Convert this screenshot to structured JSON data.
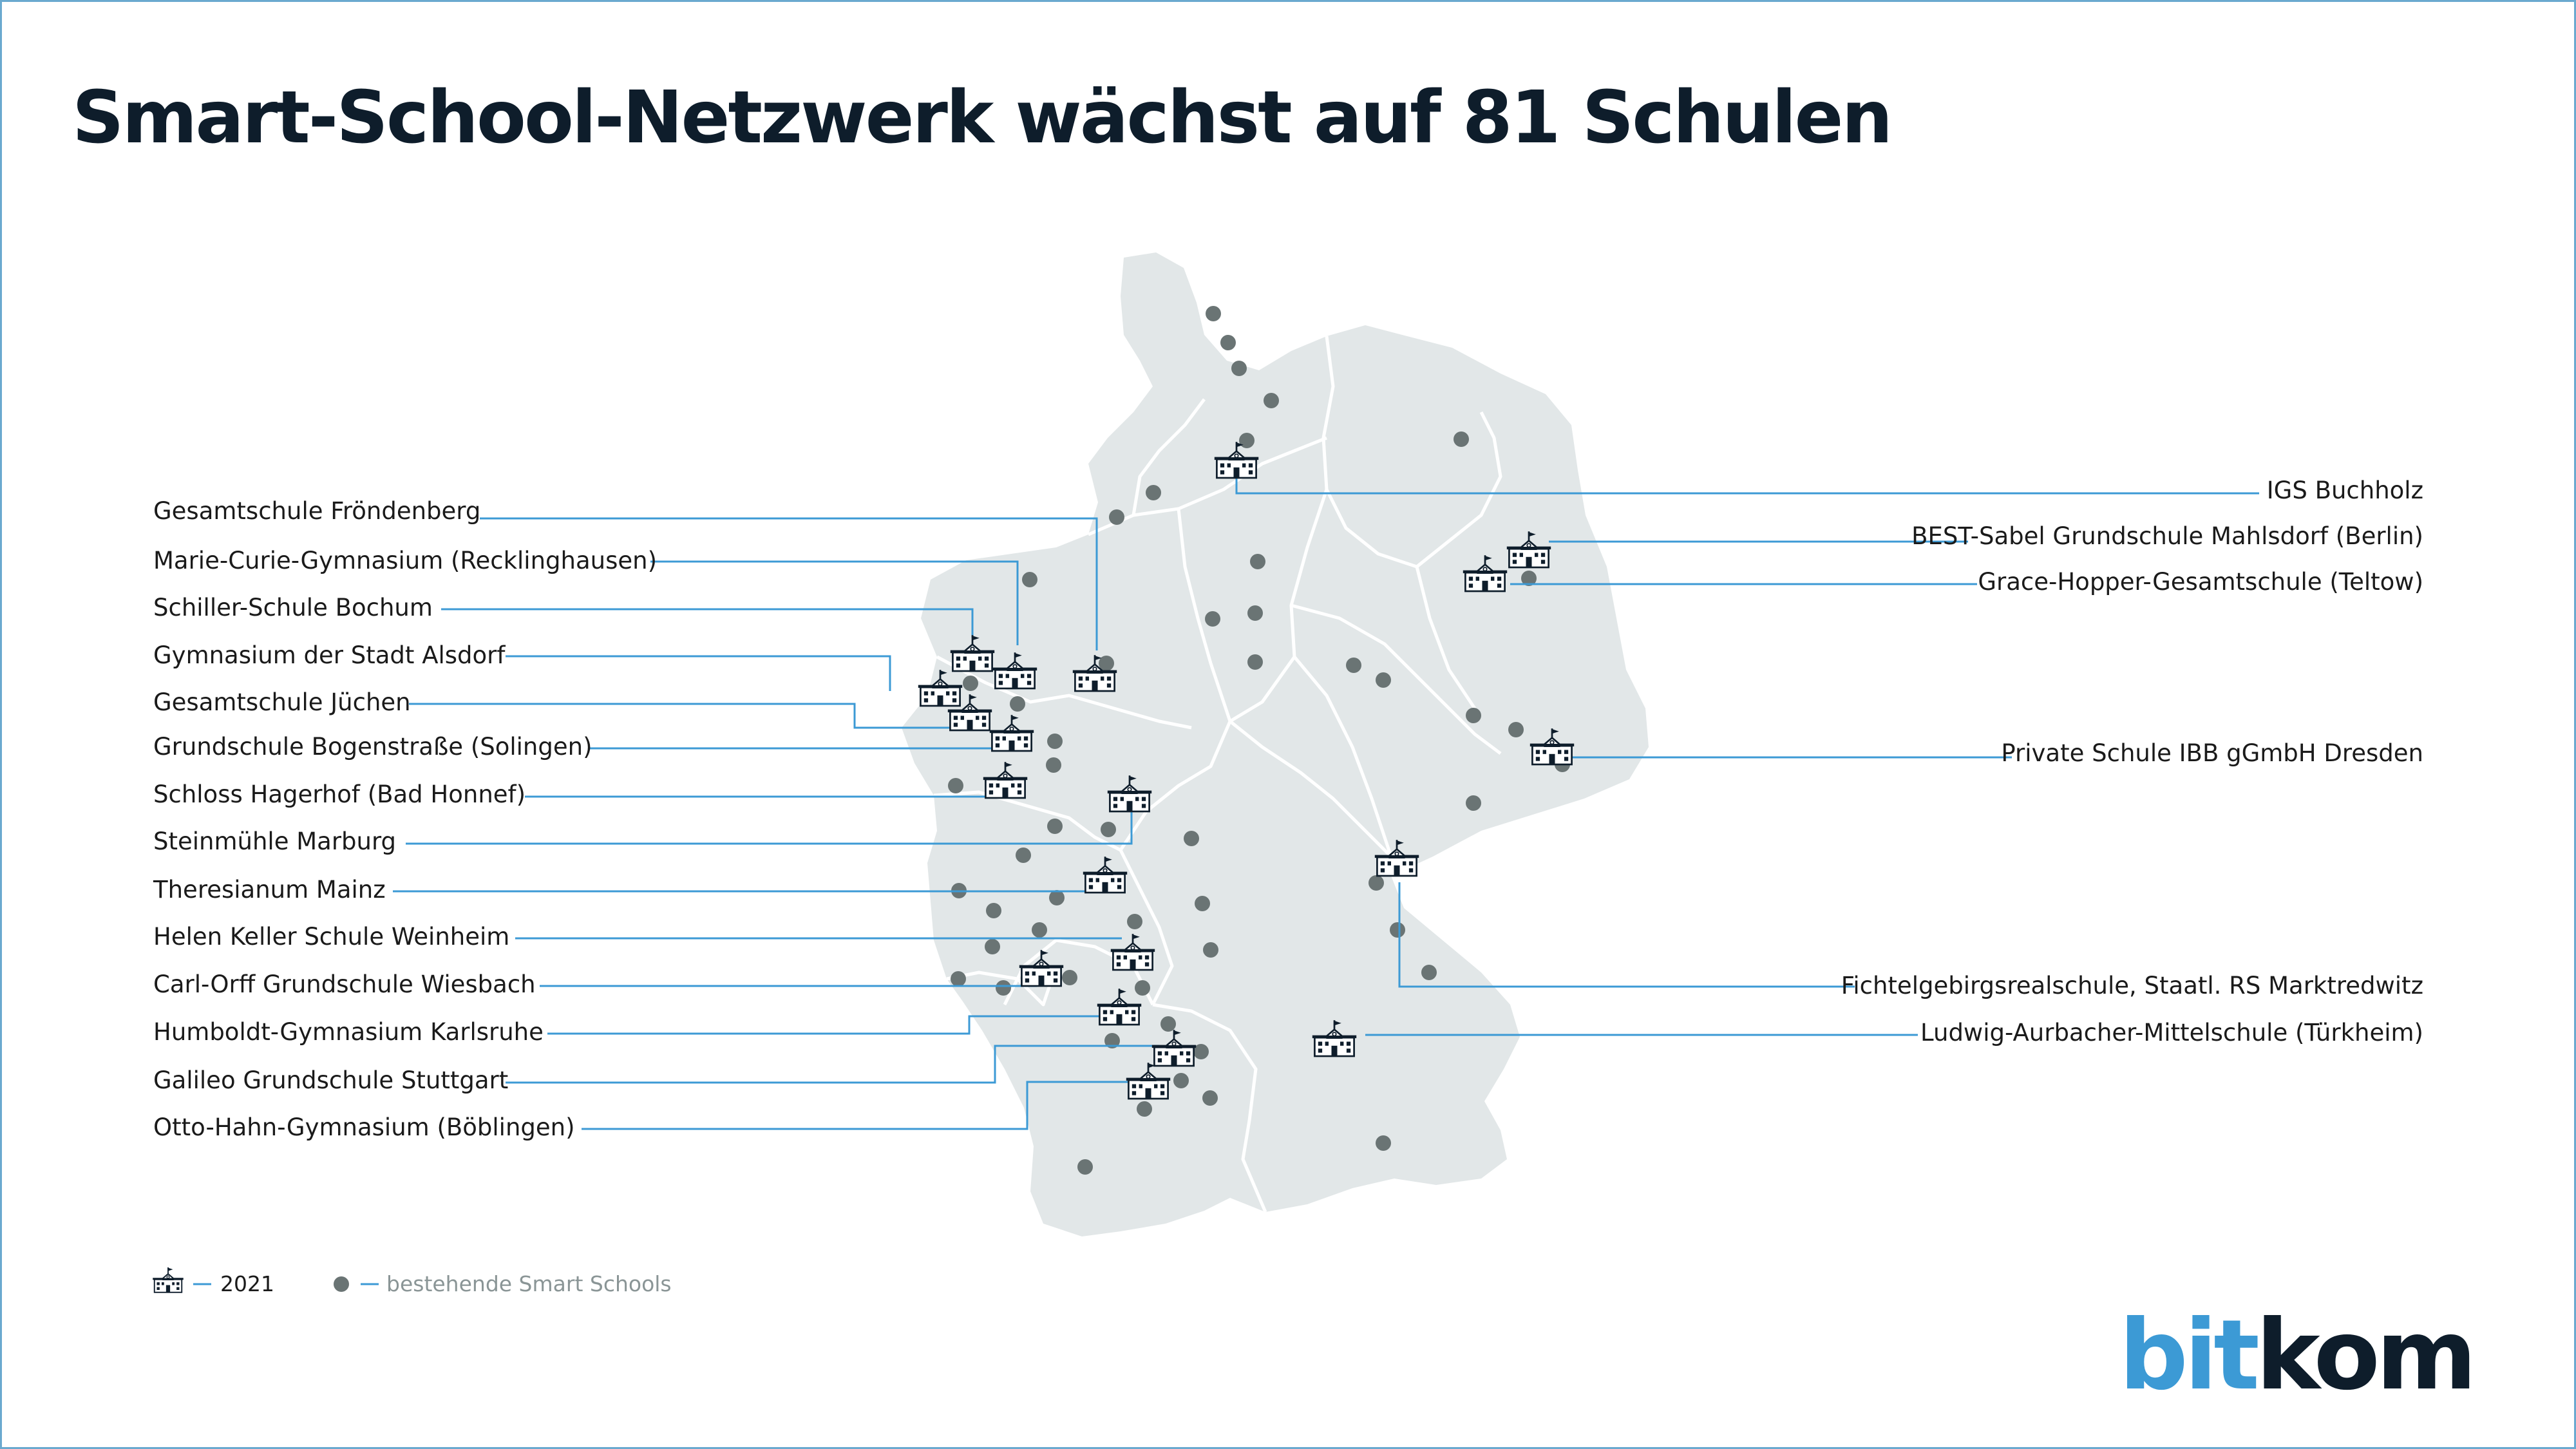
{
  "title": "Smart-School-Netzwerk wächst auf 81 Schulen",
  "colors": {
    "land": "#e2e7e8",
    "border_lines": "#ffffff",
    "existing_dot": "#6a7474",
    "new_school_icon": "#0e1d2b",
    "leader_line": "#3c9ad5",
    "frame": "#6aa9cf",
    "logo_blue": "#3c9ad5",
    "logo_dark": "#0e1d2b"
  },
  "labels_left": [
    "Gesamtschule Fröndenberg",
    "Marie-Curie-Gymnasium (Recklinghausen)",
    "Schiller-Schule Bochum",
    "Gymnasium der Stadt Alsdorf",
    "Gesamtschule Jüchen",
    "Grundschule Bogenstraße (Solingen)",
    "Schloss Hagerhof (Bad Honnef)",
    "Steinmühle Marburg",
    "Theresianum Mainz",
    "Helen Keller Schule Weinheim",
    "Carl-Orff Grundschule Wiesbach",
    "Humboldt-Gymnasium Karlsruhe",
    "Galileo Grundschule Stuttgart",
    "Otto-Hahn-Gymnasium (Böblingen)"
  ],
  "labels_right": [
    "IGS Buchholz",
    "BEST-Sabel Grundschule Mahlsdorf (Berlin)",
    "Grace-Hopper-Gesamtschule (Teltow)",
    "Private Schule IBB gGmbH Dresden",
    "Fichtelgebirgsrealschule, Staatl. RS Marktredwitz",
    "Ludwig-Aurbacher-Mittelschule (Türkheim)"
  ],
  "legend": {
    "new_year": "2021",
    "existing": "bestehende Smart Schools"
  },
  "icons": {
    "new_school": "school-building-with-flag-icon",
    "existing_school": "gray-dot"
  },
  "logo": {
    "part1": "bit",
    "part2": "kom"
  }
}
